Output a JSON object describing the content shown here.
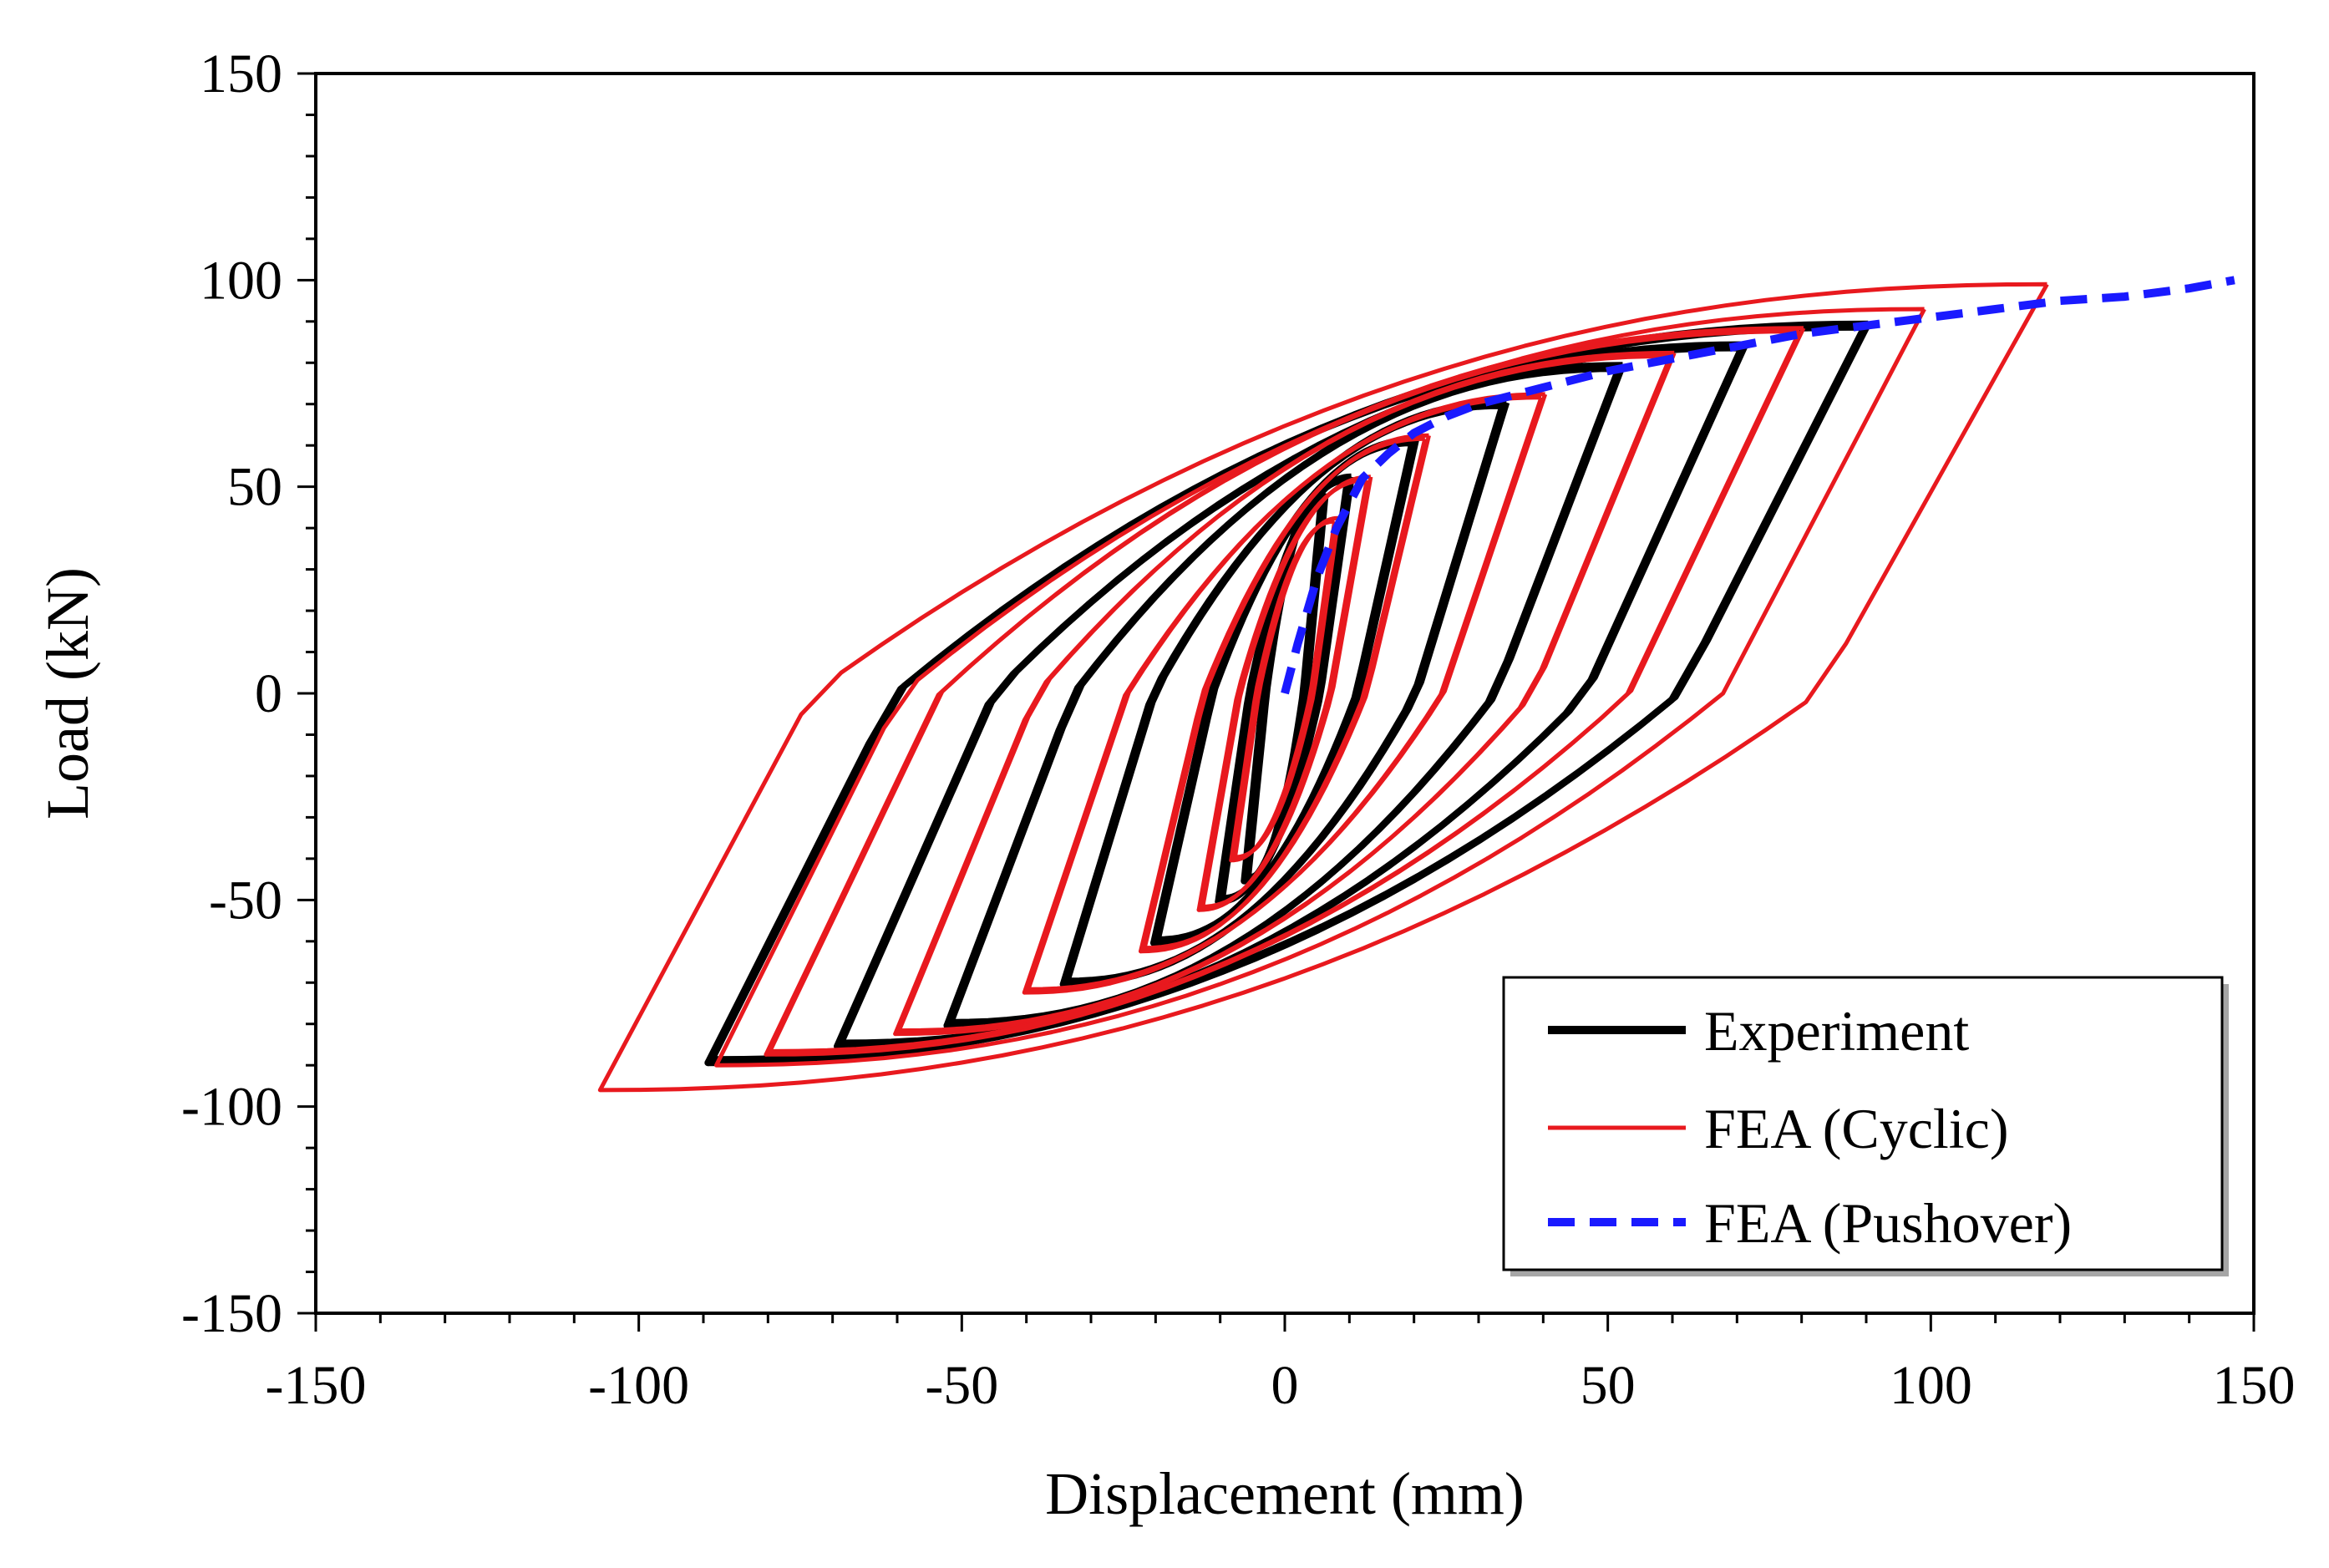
{
  "chart_data": {
    "type": "line",
    "title": "",
    "xlabel": "Displacement (mm)",
    "ylabel": "Load (kN)",
    "xlim": [
      -150,
      150
    ],
    "ylim": [
      -150,
      150
    ],
    "xticks": [
      -150,
      -100,
      -50,
      0,
      50,
      100,
      150
    ],
    "yticks": [
      -150,
      -100,
      -50,
      0,
      50,
      100,
      150
    ],
    "x_tick_labels": [
      "-150",
      "-100",
      "-50",
      "0",
      "50",
      "100",
      "150"
    ],
    "y_tick_labels": [
      "-150",
      "-100",
      "-50",
      "0",
      "50",
      "100",
      "150"
    ],
    "grid": false,
    "legend_position": "bottom-right",
    "series": [
      {
        "name": "Experiment",
        "color": "#000000",
        "style": "solid",
        "loops": [
          {
            "amp_pos": 6,
            "amp_neg": -6,
            "peak_pos": 48,
            "peak_neg": -45,
            "count": 2
          },
          {
            "amp_pos": 10,
            "amp_neg": -10,
            "peak_pos": 52,
            "peak_neg": -50,
            "count": 2
          },
          {
            "amp_pos": 20,
            "amp_neg": -20,
            "peak_pos": 61,
            "peak_neg": -60,
            "count": 2
          },
          {
            "amp_pos": 34,
            "amp_neg": -34,
            "peak_pos": 70,
            "peak_neg": -70,
            "count": 2
          },
          {
            "amp_pos": 52,
            "amp_neg": -52,
            "peak_pos": 79,
            "peak_neg": -80,
            "count": 2
          },
          {
            "amp_pos": 71,
            "amp_neg": -69,
            "peak_pos": 84,
            "peak_neg": -85,
            "count": 2
          },
          {
            "amp_pos": 90,
            "amp_neg": -89,
            "peak_pos": 89,
            "peak_neg": -89,
            "count": 2
          }
        ]
      },
      {
        "name": "FEA (Cyclic)",
        "color": "#e8191e",
        "style": "solid",
        "loops": [
          {
            "amp_pos": 8,
            "amp_neg": -8,
            "peak_pos": 42,
            "peak_neg": -40,
            "count": 2
          },
          {
            "amp_pos": 13,
            "amp_neg": -13,
            "peak_pos": 52,
            "peak_neg": -52,
            "count": 2
          },
          {
            "amp_pos": 22,
            "amp_neg": -22,
            "peak_pos": 62,
            "peak_neg": -62,
            "count": 2
          },
          {
            "amp_pos": 40,
            "amp_neg": -40,
            "peak_pos": 72,
            "peak_neg": -72,
            "count": 2
          },
          {
            "amp_pos": 60,
            "amp_neg": -60,
            "peak_pos": 82,
            "peak_neg": -82,
            "count": 2
          },
          {
            "amp_pos": 80,
            "amp_neg": -80,
            "peak_pos": 88,
            "peak_neg": -87,
            "count": 2
          },
          {
            "amp_pos": 99,
            "amp_neg": -88,
            "peak_pos": 93,
            "peak_neg": -90,
            "count": 1
          },
          {
            "amp_pos": 118,
            "amp_neg": -106,
            "peak_pos": 99,
            "peak_neg": -96,
            "count": 1
          }
        ]
      },
      {
        "name": "FEA (Pushover)",
        "color": "#1a1aff",
        "style": "dashed",
        "x": [
          0,
          2,
          5,
          8,
          12,
          16,
          20,
          25,
          30,
          40,
          50,
          60,
          70,
          80,
          90,
          100,
          110,
          120,
          130,
          140,
          147
        ],
        "y": [
          0,
          12,
          28,
          40,
          52,
          58,
          63,
          67,
          70,
          74,
          78,
          81,
          84,
          87,
          89,
          91,
          93,
          95,
          96,
          98,
          100
        ]
      }
    ]
  }
}
